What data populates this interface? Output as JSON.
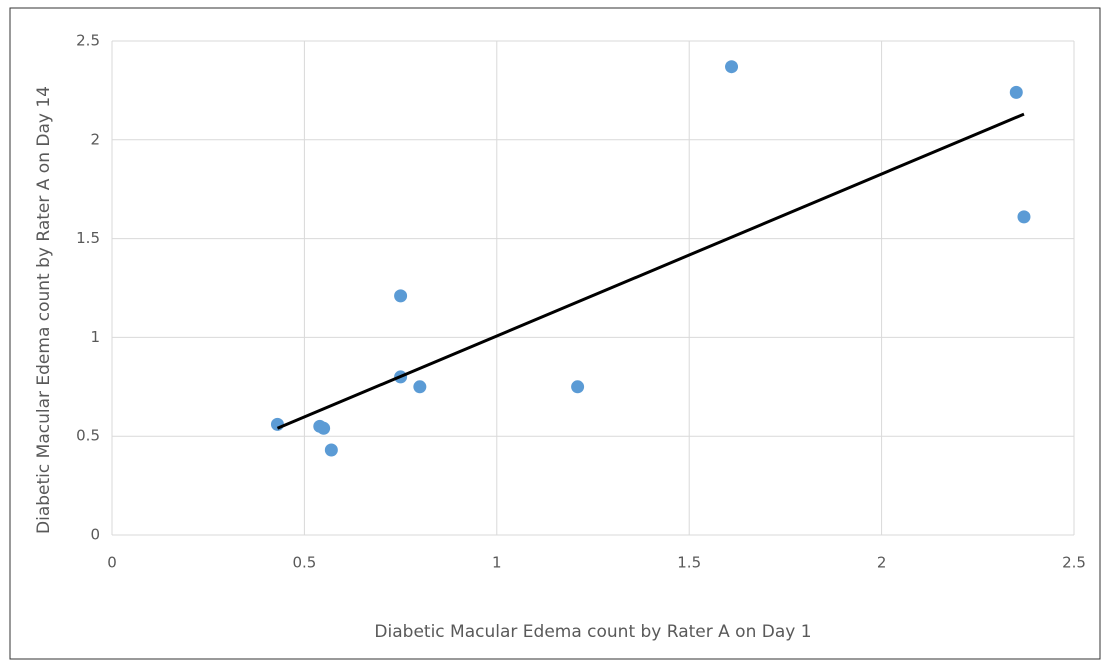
{
  "chart_data": {
    "type": "scatter",
    "xlabel": "Diabetic Macular Edema count by Rater A on Day 1",
    "ylabel": "Diabetic Macular Edema count by Rater A on Day 14",
    "x": [
      0.43,
      0.54,
      0.55,
      0.57,
      0.75,
      0.75,
      0.8,
      1.21,
      1.61,
      2.35,
      2.37
    ],
    "values": [
      0.56,
      0.55,
      0.54,
      0.43,
      1.21,
      0.8,
      0.75,
      0.75,
      2.37,
      2.24,
      1.61
    ],
    "color": "#5b9bd5",
    "trendline": {
      "x": [
        0.43,
        2.37
      ],
      "y": [
        0.54,
        2.13
      ],
      "color": "#000000"
    },
    "xlim": [
      0,
      2.5
    ],
    "xticks": [
      0,
      0.5,
      1,
      1.5,
      2,
      2.5
    ],
    "ylim": [
      0,
      2.5
    ],
    "yticks": [
      0,
      0.5,
      1,
      1.5,
      2,
      2.5
    ],
    "grid": true
  }
}
